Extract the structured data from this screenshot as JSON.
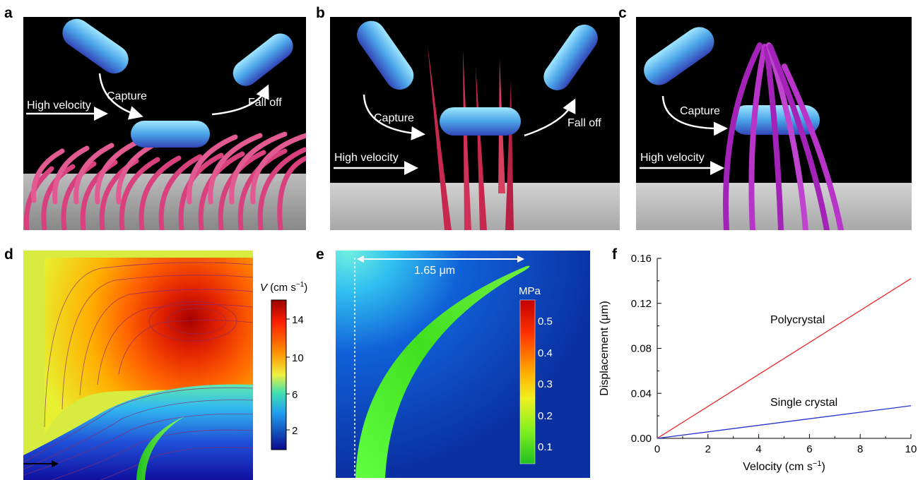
{
  "labels": {
    "a": "a",
    "b": "b",
    "c": "c",
    "d": "d",
    "e": "e",
    "f": "f"
  },
  "panel_a": {
    "capture": "Capture",
    "fall_off": "Fall off",
    "high_velocity": "High velocity"
  },
  "panel_b": {
    "capture": "Capture",
    "fall_off": "Fall off",
    "high_velocity": "High velocity"
  },
  "panel_c": {
    "capture": "Capture",
    "high_velocity": "High velocity"
  },
  "panel_d": {
    "colorbar_title_v": "V",
    "colorbar_title_units": "(cm s",
    "colorbar_title_exp": "−1",
    "colorbar_title_close": ")",
    "ticks": [
      "14",
      "10",
      "6",
      "2"
    ]
  },
  "panel_e": {
    "dimension": "1.65 μm",
    "colorbar_title": "MPa",
    "ticks": [
      "0.5",
      "0.4",
      "0.3",
      "0.2",
      "0.1"
    ]
  },
  "chart_data": {
    "type": "line",
    "xlabel": "Velocity (cm s−1)",
    "ylabel": "Displacement (μm)",
    "xlim": [
      0,
      10
    ],
    "ylim": [
      0,
      0.16
    ],
    "x_ticks": [
      0,
      2,
      4,
      6,
      8,
      10
    ],
    "y_ticks": [
      0.0,
      0.04,
      0.08,
      0.12,
      0.16
    ],
    "x_tick_labels": [
      "0",
      "2",
      "4",
      "6",
      "8",
      "10"
    ],
    "y_tick_labels": [
      "0.00",
      "0.04",
      "0.08",
      "0.12",
      "0.16"
    ],
    "series": [
      {
        "name": "Polycrystal",
        "color": "#ee2222",
        "x": [
          0,
          10
        ],
        "y": [
          0,
          0.142
        ]
      },
      {
        "name": "Single crystal",
        "color": "#2233cc",
        "x": [
          0,
          10
        ],
        "y": [
          0,
          0.029
        ]
      }
    ],
    "grid": false,
    "legend": "inline labels"
  }
}
